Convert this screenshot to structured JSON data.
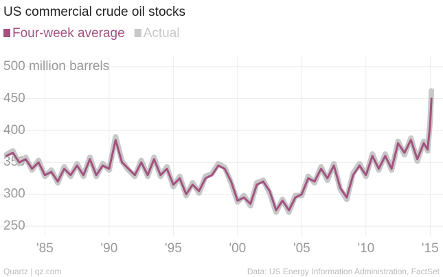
{
  "chart_data": {
    "type": "line",
    "title": "US commercial crude oil stocks",
    "source": "Data: US Energy Information Administration, FactSet",
    "credit": "Quartz | qz.com",
    "x": [
      1982.0,
      1982.5,
      1983.0,
      1983.5,
      1984.0,
      1984.5,
      1985.0,
      1985.5,
      1986.0,
      1986.5,
      1987.0,
      1987.5,
      1988.0,
      1988.5,
      1989.0,
      1989.5,
      1990.0,
      1990.5,
      1991.0,
      1991.5,
      1992.0,
      1992.5,
      1993.0,
      1993.5,
      1994.0,
      1994.5,
      1995.0,
      1995.5,
      1996.0,
      1996.5,
      1997.0,
      1997.5,
      1998.0,
      1998.5,
      1999.0,
      1999.5,
      2000.0,
      2000.5,
      2001.0,
      2001.5,
      2002.0,
      2002.5,
      2003.0,
      2003.5,
      2004.0,
      2004.5,
      2005.0,
      2005.5,
      2006.0,
      2006.5,
      2007.0,
      2007.5,
      2008.0,
      2008.5,
      2009.0,
      2009.5,
      2010.0,
      2010.5,
      2011.0,
      2011.5,
      2012.0,
      2012.5,
      2013.0,
      2013.5,
      2014.0,
      2014.5,
      2014.8,
      2015.0,
      2015.1
    ],
    "series": [
      {
        "name": "Actual",
        "color": "#c8c8c8",
        "values": [
          362,
          368,
          348,
          358,
          338,
          353,
          328,
          338,
          318,
          343,
          328,
          348,
          328,
          358,
          328,
          348,
          338,
          390,
          352,
          338,
          328,
          353,
          328,
          358,
          328,
          343,
          312,
          328,
          298,
          318,
          302,
          328,
          332,
          348,
          342,
          318,
          288,
          298,
          282,
          318,
          322,
          302,
          272,
          292,
          272,
          298,
          298,
          328,
          318,
          343,
          322,
          348,
          308,
          292,
          333,
          348,
          328,
          363,
          338,
          363,
          338,
          383,
          362,
          388,
          352,
          383,
          368,
          415,
          462
        ]
      },
      {
        "name": "Four-week average",
        "color": "#a3527f",
        "values": [
          360,
          365,
          350,
          355,
          340,
          350,
          330,
          335,
          320,
          340,
          330,
          345,
          330,
          355,
          330,
          345,
          340,
          385,
          350,
          340,
          330,
          350,
          330,
          355,
          330,
          340,
          315,
          325,
          300,
          315,
          305,
          325,
          330,
          345,
          340,
          320,
          290,
          295,
          285,
          315,
          320,
          305,
          275,
          290,
          275,
          295,
          300,
          325,
          320,
          340,
          325,
          345,
          310,
          295,
          330,
          345,
          330,
          360,
          340,
          360,
          340,
          380,
          365,
          385,
          355,
          380,
          370,
          410,
          450
        ]
      }
    ],
    "xlim": [
      1981.5,
      2016
    ],
    "xticks": [
      {
        "value": 1985,
        "label": "'85"
      },
      {
        "value": 1990,
        "label": "'90"
      },
      {
        "value": 1995,
        "label": "'95"
      },
      {
        "value": 2000,
        "label": "'00"
      },
      {
        "value": 2005,
        "label": "'05"
      },
      {
        "value": 2010,
        "label": "'10"
      },
      {
        "value": 2015,
        "label": "'15"
      }
    ],
    "ylim": [
      235,
      515
    ],
    "yticks": [
      250,
      300,
      350,
      400,
      450,
      {
        "value": 500,
        "label": "500 million barrels"
      }
    ],
    "grid": true
  }
}
